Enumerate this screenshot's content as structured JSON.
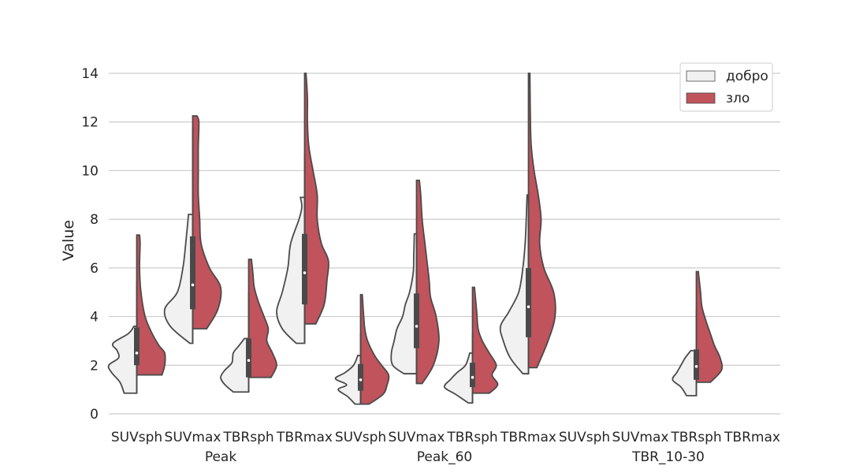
{
  "chart_data": {
    "type": "violin",
    "split": true,
    "ylabel": "Value",
    "ylim": [
      0,
      14.6
    ],
    "yticks": [
      0,
      2,
      4,
      6,
      8,
      10,
      12,
      14
    ],
    "grid": true,
    "legend": {
      "position": "top-right",
      "entries": [
        "добро",
        "зло"
      ]
    },
    "colors": {
      "добро": "#f2f1f1",
      "зло": "#c0535c",
      "outline": "#4a4a4a",
      "grid": "#cccccc"
    },
    "groups": [
      {
        "label": "Peak",
        "metrics": [
          "SUVsph",
          "SUVmax",
          "TBRsph",
          "TBRmax"
        ]
      },
      {
        "label": "Peak_60",
        "metrics": [
          "SUVsph",
          "SUVmax",
          "TBRsph",
          "TBRmax"
        ]
      },
      {
        "label": "TBR_10-30",
        "metrics": [
          "SUVsph",
          "SUVmax",
          "TBRsph",
          "TBRmax"
        ]
      }
    ],
    "violins": [
      {
        "group": "Peak",
        "metric": "SUVsph",
        "left": [
          [
            0.85,
            0.45
          ],
          [
            1.3,
            0.6
          ],
          [
            1.7,
            0.9
          ],
          [
            2.0,
            1.0
          ],
          [
            2.3,
            0.65
          ],
          [
            2.6,
            0.7
          ],
          [
            2.9,
            0.85
          ],
          [
            3.3,
            0.3
          ],
          [
            3.6,
            0.1
          ]
        ],
        "right": [
          [
            1.6,
            0.9
          ],
          [
            2.0,
            1.0
          ],
          [
            2.5,
            1.0
          ],
          [
            2.8,
            0.8
          ],
          [
            3.3,
            0.55
          ],
          [
            4.0,
            0.3
          ],
          [
            5.0,
            0.15
          ],
          [
            6.0,
            0.1
          ],
          [
            7.0,
            0.12
          ],
          [
            7.35,
            0.1
          ]
        ],
        "box": [
          2.0,
          3.55
        ],
        "whisker": [
          0.85,
          5.4
        ],
        "median": 2.5
      },
      {
        "group": "Peak",
        "metric": "SUVmax",
        "left": [
          [
            2.9,
            0.1
          ],
          [
            3.6,
            0.8
          ],
          [
            4.3,
            1.0
          ],
          [
            5.0,
            0.55
          ],
          [
            6.0,
            0.35
          ],
          [
            7.0,
            0.25
          ],
          [
            8.2,
            0.15
          ]
        ],
        "right": [
          [
            3.5,
            0.5
          ],
          [
            4.3,
            0.9
          ],
          [
            5.2,
            1.0
          ],
          [
            6.0,
            0.6
          ],
          [
            7.0,
            0.3
          ],
          [
            8.0,
            0.25
          ],
          [
            9.0,
            0.2
          ],
          [
            10.0,
            0.2
          ],
          [
            11.0,
            0.2
          ],
          [
            12.0,
            0.22
          ],
          [
            12.25,
            0.15
          ]
        ],
        "box": [
          4.3,
          7.3
        ],
        "whisker": [
          2.9,
          11.8
        ],
        "median": 5.3
      },
      {
        "group": "Peak",
        "metric": "TBRsph",
        "left": [
          [
            0.9,
            0.55
          ],
          [
            1.2,
            0.85
          ],
          [
            1.5,
            1.0
          ],
          [
            1.8,
            0.85
          ],
          [
            2.1,
            0.6
          ],
          [
            2.5,
            0.55
          ],
          [
            2.8,
            0.35
          ],
          [
            3.1,
            0.15
          ]
        ],
        "right": [
          [
            1.5,
            0.8
          ],
          [
            2.0,
            1.0
          ],
          [
            2.5,
            0.85
          ],
          [
            3.0,
            0.65
          ],
          [
            3.5,
            0.7
          ],
          [
            4.0,
            0.55
          ],
          [
            4.6,
            0.35
          ],
          [
            5.2,
            0.2
          ],
          [
            5.8,
            0.15
          ],
          [
            6.35,
            0.1
          ]
        ],
        "box": [
          1.5,
          3.1
        ],
        "whisker": [
          0.9,
          5.0
        ],
        "median": 2.2
      },
      {
        "group": "Peak",
        "metric": "TBRmax",
        "left": [
          [
            2.9,
            0.3
          ],
          [
            3.5,
            0.8
          ],
          [
            4.2,
            1.0
          ],
          [
            5.0,
            0.8
          ],
          [
            6.0,
            0.6
          ],
          [
            7.0,
            0.5
          ],
          [
            8.0,
            0.2
          ],
          [
            8.5,
            0.1
          ],
          [
            8.9,
            0.15
          ]
        ],
        "right": [
          [
            3.7,
            0.4
          ],
          [
            4.5,
            0.7
          ],
          [
            5.5,
            0.8
          ],
          [
            6.3,
            0.85
          ],
          [
            7.0,
            0.6
          ],
          [
            8.0,
            0.45
          ],
          [
            9.0,
            0.45
          ],
          [
            10.0,
            0.3
          ],
          [
            11.0,
            0.15
          ],
          [
            12.0,
            0.1
          ],
          [
            13.0,
            0.1
          ],
          [
            14.0,
            0.05
          ]
        ],
        "box": [
          4.5,
          7.4
        ],
        "whisker": [
          2.9,
          10.7
        ],
        "median": 5.8
      },
      {
        "group": "Peak_60",
        "metric": "SUVsph",
        "left": [
          [
            0.4,
            0.2
          ],
          [
            0.7,
            0.45
          ],
          [
            1.0,
            0.8
          ],
          [
            1.2,
            0.5
          ],
          [
            1.45,
            0.9
          ],
          [
            1.7,
            0.55
          ],
          [
            2.0,
            0.25
          ],
          [
            2.4,
            0.1
          ]
        ],
        "right": [
          [
            0.4,
            0.3
          ],
          [
            0.8,
            0.8
          ],
          [
            1.2,
            0.95
          ],
          [
            1.6,
            1.0
          ],
          [
            2.0,
            0.75
          ],
          [
            2.4,
            0.5
          ],
          [
            3.0,
            0.25
          ],
          [
            3.5,
            0.15
          ],
          [
            4.2,
            0.1
          ],
          [
            4.9,
            0.06
          ]
        ],
        "box": [
          0.95,
          2.05
        ],
        "whisker": [
          0.4,
          3.3
        ],
        "median": 1.4
      },
      {
        "group": "Peak_60",
        "metric": "SUVmax",
        "left": [
          [
            1.65,
            0.45
          ],
          [
            2.0,
            0.85
          ],
          [
            2.5,
            0.9
          ],
          [
            3.0,
            0.8
          ],
          [
            3.5,
            0.7
          ],
          [
            4.0,
            0.5
          ],
          [
            4.5,
            0.4
          ],
          [
            5.0,
            0.25
          ],
          [
            5.8,
            0.12
          ],
          [
            6.5,
            0.1
          ],
          [
            7.4,
            0.08
          ]
        ],
        "right": [
          [
            1.25,
            0.2
          ],
          [
            2.0,
            0.6
          ],
          [
            3.0,
            0.8
          ],
          [
            4.0,
            0.7
          ],
          [
            4.8,
            0.5
          ],
          [
            5.5,
            0.45
          ],
          [
            6.5,
            0.35
          ],
          [
            7.0,
            0.3
          ],
          [
            8.0,
            0.2
          ],
          [
            9.0,
            0.15
          ],
          [
            9.6,
            0.1
          ]
        ],
        "box": [
          2.7,
          4.95
        ],
        "whisker": [
          1.25,
          7.4
        ],
        "median": 3.6
      },
      {
        "group": "Peak_60",
        "metric": "TBRsph",
        "left": [
          [
            0.45,
            0.15
          ],
          [
            0.8,
            0.6
          ],
          [
            1.1,
            1.0
          ],
          [
            1.4,
            0.8
          ],
          [
            1.7,
            0.55
          ],
          [
            2.0,
            0.25
          ],
          [
            2.5,
            0.1
          ]
        ],
        "right": [
          [
            0.85,
            0.6
          ],
          [
            1.2,
            0.9
          ],
          [
            1.6,
            0.7
          ],
          [
            2.0,
            0.85
          ],
          [
            2.5,
            0.6
          ],
          [
            3.0,
            0.35
          ],
          [
            3.5,
            0.2
          ],
          [
            4.2,
            0.15
          ],
          [
            5.2,
            0.07
          ]
        ],
        "box": [
          1.1,
          2.1
        ],
        "whisker": [
          0.45,
          3.3
        ],
        "median": 1.5
      },
      {
        "group": "Peak_60",
        "metric": "TBRmax",
        "left": [
          [
            1.65,
            0.2
          ],
          [
            2.3,
            0.65
          ],
          [
            3.0,
            0.9
          ],
          [
            3.6,
            1.0
          ],
          [
            4.2,
            0.7
          ],
          [
            5.0,
            0.35
          ],
          [
            6.0,
            0.2
          ],
          [
            7.0,
            0.12
          ],
          [
            8.0,
            0.08
          ],
          [
            9.0,
            0.05
          ]
        ],
        "right": [
          [
            1.9,
            0.3
          ],
          [
            3.0,
            0.7
          ],
          [
            4.0,
            0.95
          ],
          [
            5.0,
            0.9
          ],
          [
            6.0,
            0.55
          ],
          [
            7.0,
            0.4
          ],
          [
            8.0,
            0.45
          ],
          [
            9.0,
            0.35
          ],
          [
            10.0,
            0.2
          ],
          [
            11.0,
            0.1
          ],
          [
            12.0,
            0.07
          ],
          [
            14.0,
            0.05
          ]
        ],
        "box": [
          3.15,
          6.0
        ],
        "whisker": [
          1.65,
          8.9
        ],
        "median": 4.4
      },
      {
        "group": "TBR_10-30",
        "metric": "TBRsph",
        "left": [
          [
            0.75,
            0.35
          ],
          [
            1.1,
            0.55
          ],
          [
            1.4,
            0.85
          ],
          [
            1.7,
            0.7
          ],
          [
            2.0,
            0.55
          ],
          [
            2.3,
            0.4
          ],
          [
            2.6,
            0.2
          ]
        ],
        "right": [
          [
            1.3,
            0.5
          ],
          [
            1.8,
            0.9
          ],
          [
            2.3,
            0.85
          ],
          [
            2.8,
            0.65
          ],
          [
            3.3,
            0.5
          ],
          [
            3.8,
            0.35
          ],
          [
            4.4,
            0.2
          ],
          [
            5.0,
            0.15
          ],
          [
            5.85,
            0.07
          ]
        ],
        "box": [
          1.4,
          2.65
        ],
        "whisker": [
          0.75,
          4.3
        ],
        "median": 1.95
      }
    ]
  }
}
